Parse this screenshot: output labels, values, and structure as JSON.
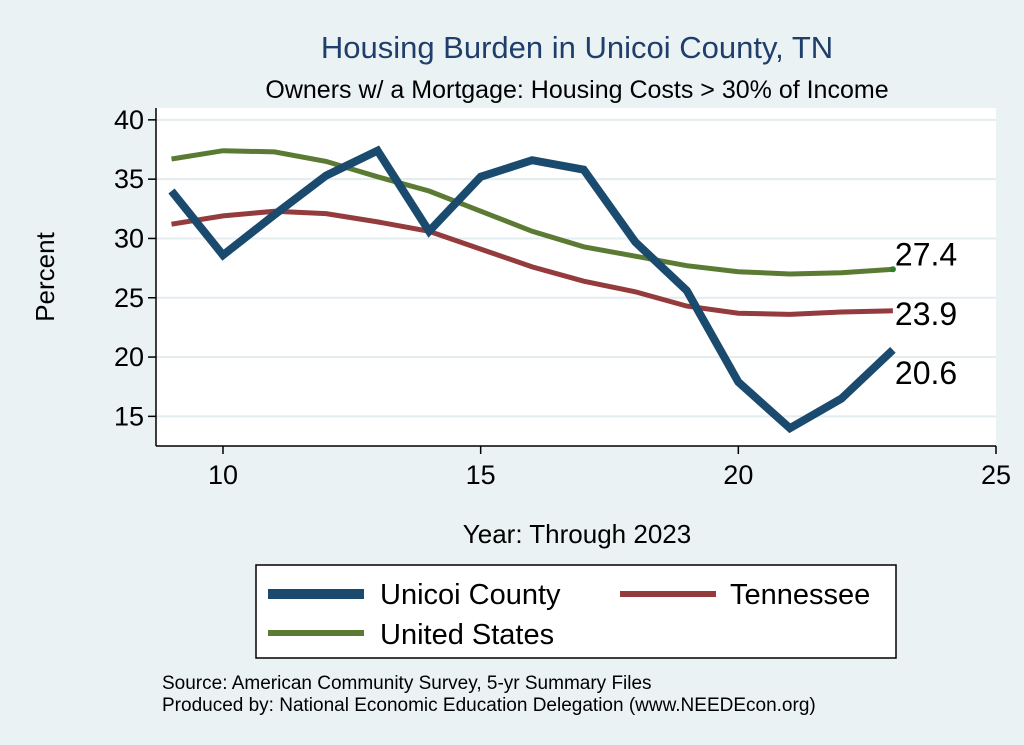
{
  "chart_data": {
    "type": "line",
    "title": "Housing Burden in Unicoi County, TN",
    "subtitle": "Owners w/ a Mortgage: Housing Costs > 30% of Income",
    "xlabel": "Year: Through 2023",
    "ylabel": "Percent",
    "xlim": [
      8.7,
      25
    ],
    "ylim": [
      12.5,
      41
    ],
    "xticks": [
      10,
      15,
      20,
      25
    ],
    "yticks": [
      15,
      20,
      25,
      30,
      35,
      40
    ],
    "x": [
      9,
      10,
      11,
      12,
      13,
      14,
      15,
      16,
      17,
      18,
      19,
      20,
      21,
      22,
      23
    ],
    "series": [
      {
        "name": "Unicoi County",
        "color": "#1b4a6f",
        "values": [
          34.0,
          28.6,
          32.0,
          35.3,
          37.4,
          30.6,
          35.2,
          36.6,
          35.8,
          29.7,
          25.6,
          17.9,
          14.0,
          16.5,
          20.6
        ],
        "end_label": "20.6"
      },
      {
        "name": "Tennessee",
        "color": "#943b3d",
        "values": [
          31.2,
          31.9,
          32.3,
          32.1,
          31.4,
          30.6,
          29.1,
          27.6,
          26.4,
          25.5,
          24.3,
          23.7,
          23.6,
          23.8,
          23.9
        ],
        "end_label": "23.9"
      },
      {
        "name": "United States",
        "color": "#5b7b34",
        "values": [
          36.7,
          37.4,
          37.3,
          36.5,
          35.2,
          34.0,
          32.3,
          30.6,
          29.3,
          28.5,
          27.7,
          27.2,
          27.0,
          27.1,
          27.4
        ],
        "end_label": "27.4"
      }
    ],
    "legend": {
      "position": "bottom",
      "items": [
        "Unicoi County",
        "Tennessee",
        "United States"
      ]
    }
  },
  "source_note": {
    "line1": "Source: American Community Survey, 5-yr Summary Files",
    "line2": "Produced by: National Economic Education Delegation (www.NEEDEcon.org)"
  }
}
